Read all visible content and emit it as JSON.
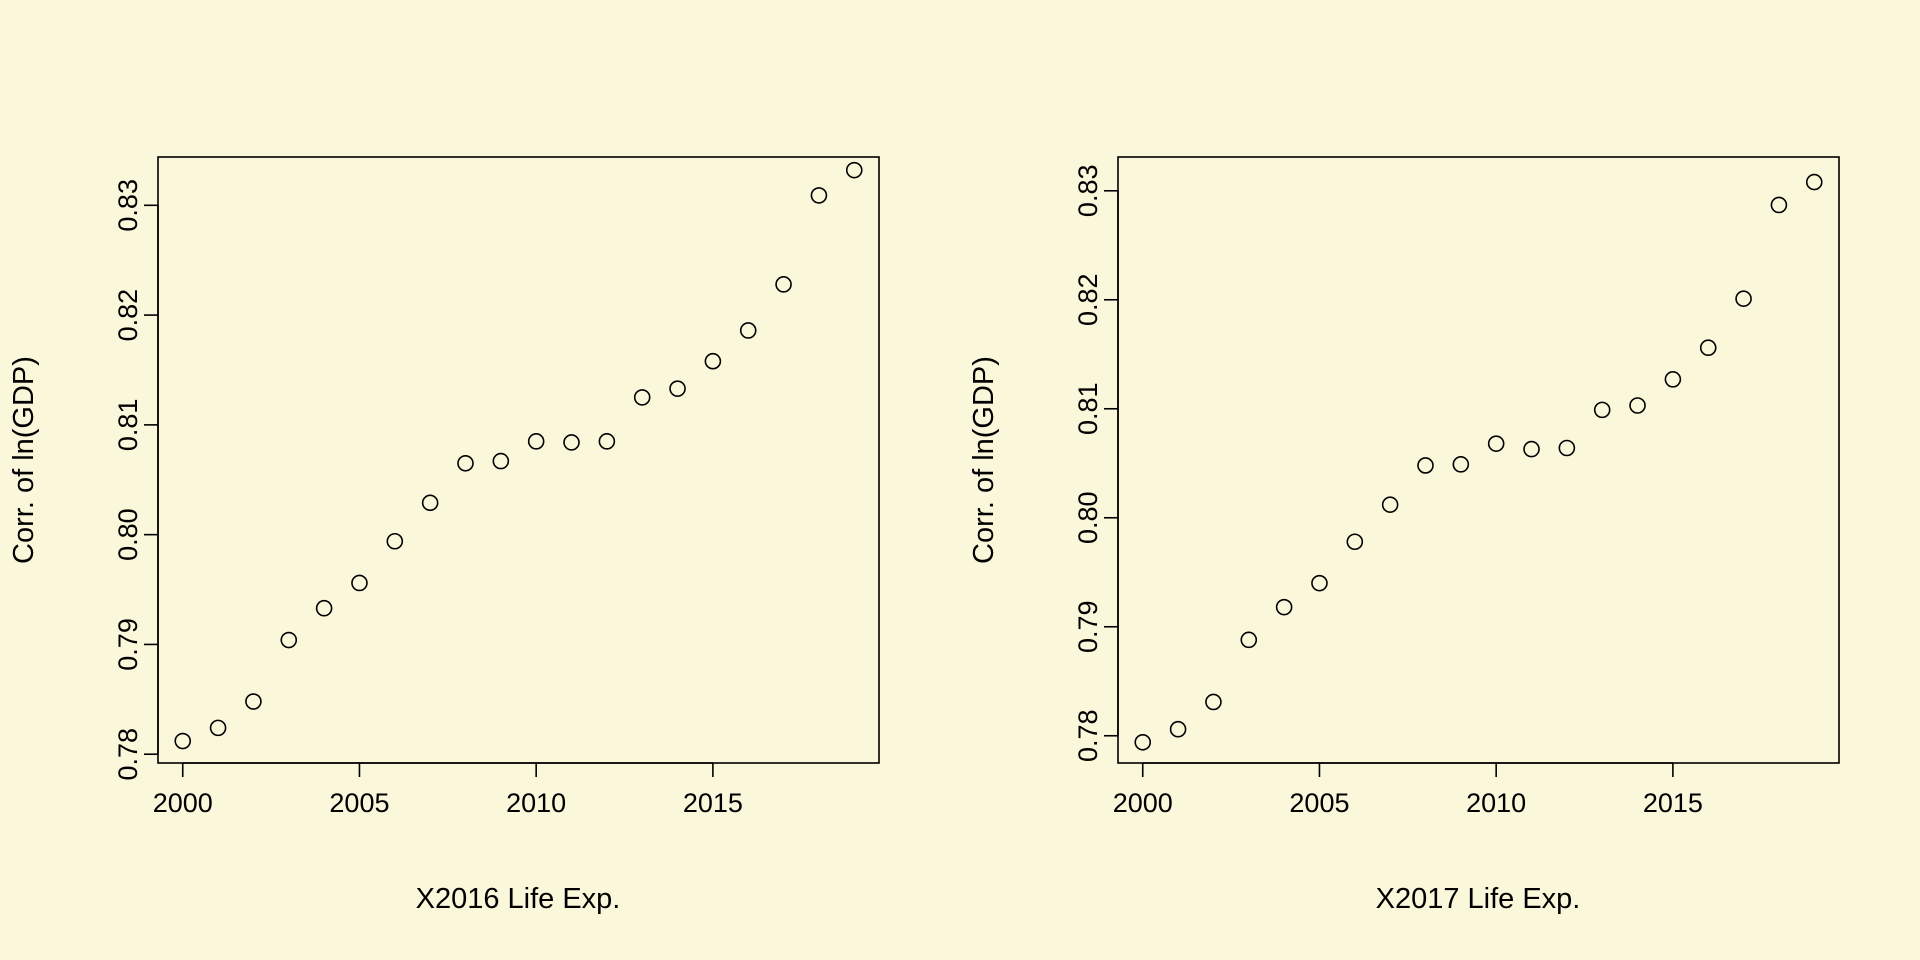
{
  "chart_data": [
    {
      "type": "scatter",
      "title": "",
      "xlabel": "X2016 Life Exp.",
      "ylabel": "Corr. of ln(GDP)",
      "xlim": [
        1999.3,
        2019.7
      ],
      "ylim": [
        0.7792,
        0.8344
      ],
      "xticks": [
        2000,
        2005,
        2010,
        2015
      ],
      "xtick_labels": [
        "2000",
        "2005",
        "2010",
        "2015"
      ],
      "yticks": [
        0.78,
        0.79,
        0.8,
        0.81,
        0.82,
        0.83
      ],
      "ytick_labels": [
        "0.78",
        "0.79",
        "0.80",
        "0.81",
        "0.82",
        "0.83"
      ],
      "grid": false,
      "marker": "open-circle",
      "x": [
        2000,
        2001,
        2002,
        2003,
        2004,
        2005,
        2006,
        2007,
        2008,
        2009,
        2010,
        2011,
        2012,
        2013,
        2014,
        2015,
        2016,
        2017,
        2018,
        2019
      ],
      "y": [
        0.7812,
        0.7824,
        0.7848,
        0.7904,
        0.7933,
        0.7956,
        0.7994,
        0.8029,
        0.8065,
        0.8067,
        0.8085,
        0.8084,
        0.8085,
        0.8125,
        0.8133,
        0.8158,
        0.8186,
        0.8228,
        0.8309,
        0.8332
      ]
    },
    {
      "type": "scatter",
      "title": "",
      "xlabel": "X2017 Life Exp.",
      "ylabel": "Corr. of ln(GDP)",
      "xlim": [
        1999.3,
        2019.7
      ],
      "ylim": [
        0.7775,
        0.8331
      ],
      "xticks": [
        2000,
        2005,
        2010,
        2015
      ],
      "xtick_labels": [
        "2000",
        "2005",
        "2010",
        "2015"
      ],
      "yticks": [
        0.78,
        0.79,
        0.8,
        0.81,
        0.82,
        0.83
      ],
      "ytick_labels": [
        "0.78",
        "0.79",
        "0.80",
        "0.81",
        "0.82",
        "0.83"
      ],
      "grid": false,
      "marker": "open-circle",
      "x": [
        2000,
        2001,
        2002,
        2003,
        2004,
        2005,
        2006,
        2007,
        2008,
        2009,
        2010,
        2011,
        2012,
        2013,
        2014,
        2015,
        2016,
        2017,
        2018,
        2019
      ],
      "y": [
        0.7794,
        0.7806,
        0.7831,
        0.7888,
        0.7918,
        0.794,
        0.7978,
        0.8012,
        0.8048,
        0.8049,
        0.8068,
        0.8063,
        0.8064,
        0.8099,
        0.8103,
        0.8127,
        0.8156,
        0.8201,
        0.8287,
        0.8308
      ]
    }
  ]
}
